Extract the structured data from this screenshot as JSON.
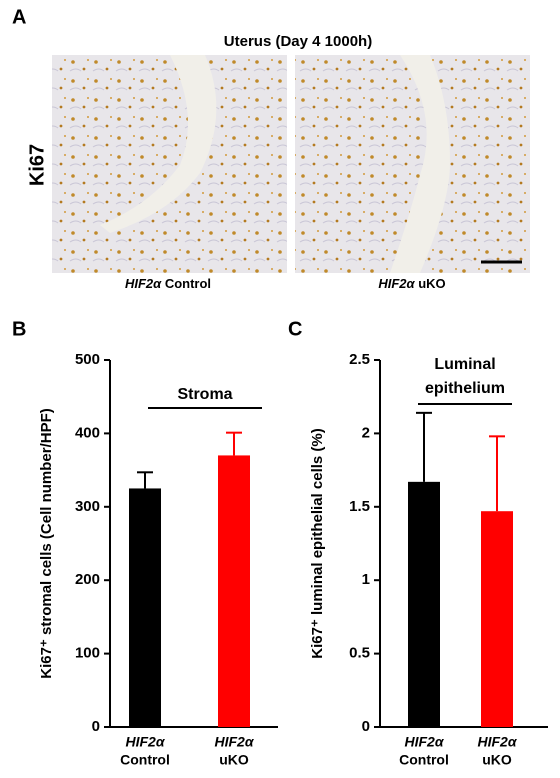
{
  "figure": {
    "panel_labels": [
      "A",
      "B",
      "C"
    ],
    "title": "Uterus (Day 4  1000h)",
    "row_label": "Ki67",
    "image_labels": [
      [
        "HIF2α",
        "Control"
      ],
      [
        "HIF2α",
        "uKO"
      ]
    ]
  },
  "chart_data": [
    {
      "type": "bar",
      "y_label": "Ki67⁺ stromal cells (Cell number/HPF)",
      "annotation": [
        "Stroma"
      ],
      "categories": [
        [
          "HIF2α",
          "Control"
        ],
        [
          "HIF2α",
          "uKO"
        ]
      ],
      "values": [
        325,
        370
      ],
      "errors": [
        22,
        31
      ],
      "colors": [
        "#000000",
        "#ff0000"
      ],
      "ylim": [
        0,
        500
      ],
      "yticks": [
        0,
        100,
        200,
        300,
        400,
        500
      ]
    },
    {
      "type": "bar",
      "y_label": "Ki67⁺ luminal epithelial cells (%)",
      "annotation": [
        "Luminal",
        "epithelium"
      ],
      "categories": [
        [
          "HIF2α",
          "Control"
        ],
        [
          "HIF2α",
          "uKO"
        ]
      ],
      "values": [
        1.67,
        1.47
      ],
      "errors": [
        0.47,
        0.51
      ],
      "colors": [
        "#000000",
        "#ff0000"
      ],
      "ylim": [
        0,
        2.5
      ],
      "yticks": [
        0,
        0.5,
        1,
        1.5,
        2,
        2.5
      ]
    }
  ]
}
